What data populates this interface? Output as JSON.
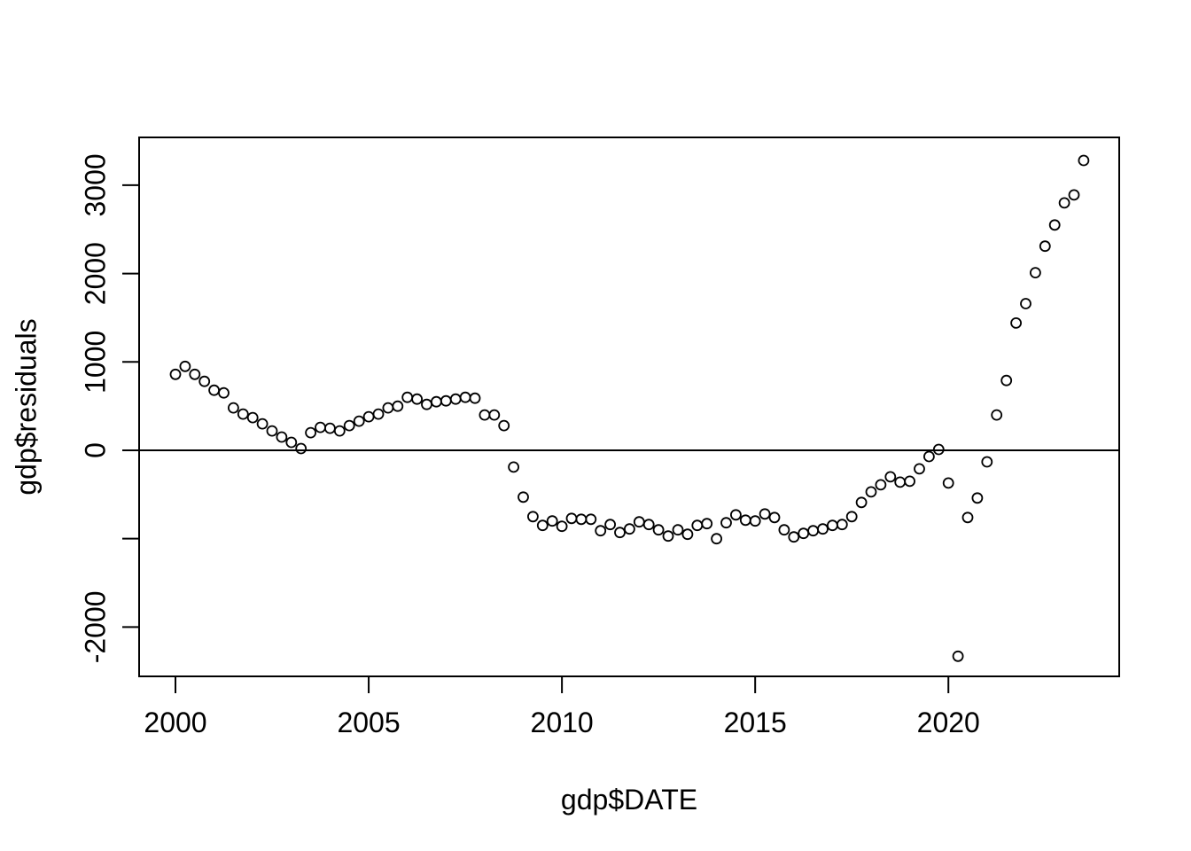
{
  "figure": {
    "background": "#ffffff",
    "foreground": "#000000"
  },
  "chart_data": {
    "type": "scatter",
    "title": "",
    "xlabel": "gdp$DATE",
    "ylabel": "gdp$residuals",
    "point_style": "open-circle",
    "point_color": "#000000",
    "grid": false,
    "legend": "none",
    "zero_line": true,
    "xlim": [
      1999.06,
      2024.42
    ],
    "ylim": [
      -2558,
      3541
    ],
    "x_ticks": {
      "values": [
        2000,
        2005,
        2010,
        2015,
        2020
      ],
      "labels": [
        "2000",
        "2005",
        "2010",
        "2015",
        "2020"
      ]
    },
    "y_ticks": {
      "values": [
        3000,
        2000,
        1000,
        0,
        -1000,
        -2000
      ],
      "labels": [
        "3000",
        "2000",
        "1000",
        "0",
        "",
        "-2000"
      ]
    },
    "x_unit": "year (quarterly)",
    "points": [
      [
        2000.0,
        860
      ],
      [
        2000.25,
        950
      ],
      [
        2000.5,
        860
      ],
      [
        2000.75,
        780
      ],
      [
        2001.0,
        680
      ],
      [
        2001.25,
        650
      ],
      [
        2001.5,
        480
      ],
      [
        2001.75,
        410
      ],
      [
        2002.0,
        370
      ],
      [
        2002.25,
        300
      ],
      [
        2002.5,
        220
      ],
      [
        2002.75,
        150
      ],
      [
        2003.0,
        90
      ],
      [
        2003.25,
        20
      ],
      [
        2003.5,
        200
      ],
      [
        2003.75,
        260
      ],
      [
        2004.0,
        250
      ],
      [
        2004.25,
        220
      ],
      [
        2004.5,
        280
      ],
      [
        2004.75,
        330
      ],
      [
        2005.0,
        380
      ],
      [
        2005.25,
        410
      ],
      [
        2005.5,
        480
      ],
      [
        2005.75,
        500
      ],
      [
        2006.0,
        600
      ],
      [
        2006.25,
        580
      ],
      [
        2006.5,
        520
      ],
      [
        2006.75,
        550
      ],
      [
        2007.0,
        560
      ],
      [
        2007.25,
        580
      ],
      [
        2007.5,
        600
      ],
      [
        2007.75,
        590
      ],
      [
        2008.0,
        400
      ],
      [
        2008.25,
        400
      ],
      [
        2008.5,
        280
      ],
      [
        2008.75,
        -190
      ],
      [
        2009.0,
        -530
      ],
      [
        2009.25,
        -750
      ],
      [
        2009.5,
        -850
      ],
      [
        2009.75,
        -800
      ],
      [
        2010.0,
        -860
      ],
      [
        2010.25,
        -770
      ],
      [
        2010.5,
        -780
      ],
      [
        2010.75,
        -780
      ],
      [
        2011.0,
        -910
      ],
      [
        2011.25,
        -840
      ],
      [
        2011.5,
        -930
      ],
      [
        2011.75,
        -890
      ],
      [
        2012.0,
        -810
      ],
      [
        2012.25,
        -840
      ],
      [
        2012.5,
        -900
      ],
      [
        2012.75,
        -970
      ],
      [
        2013.0,
        -900
      ],
      [
        2013.25,
        -950
      ],
      [
        2013.5,
        -850
      ],
      [
        2013.75,
        -830
      ],
      [
        2014.0,
        -1000
      ],
      [
        2014.25,
        -820
      ],
      [
        2014.5,
        -730
      ],
      [
        2014.75,
        -790
      ],
      [
        2015.0,
        -800
      ],
      [
        2015.25,
        -720
      ],
      [
        2015.5,
        -760
      ],
      [
        2015.75,
        -900
      ],
      [
        2016.0,
        -980
      ],
      [
        2016.25,
        -940
      ],
      [
        2016.5,
        -910
      ],
      [
        2016.75,
        -890
      ],
      [
        2017.0,
        -850
      ],
      [
        2017.25,
        -840
      ],
      [
        2017.5,
        -750
      ],
      [
        2017.75,
        -590
      ],
      [
        2018.0,
        -470
      ],
      [
        2018.25,
        -390
      ],
      [
        2018.5,
        -300
      ],
      [
        2018.75,
        -360
      ],
      [
        2019.0,
        -350
      ],
      [
        2019.25,
        -210
      ],
      [
        2019.5,
        -70
      ],
      [
        2019.75,
        10
      ],
      [
        2020.0,
        -370
      ],
      [
        2020.25,
        -2330
      ],
      [
        2020.5,
        -760
      ],
      [
        2020.75,
        -540
      ],
      [
        2021.0,
        -130
      ],
      [
        2021.25,
        400
      ],
      [
        2021.5,
        790
      ],
      [
        2021.75,
        1440
      ],
      [
        2022.0,
        1660
      ],
      [
        2022.25,
        2010
      ],
      [
        2022.5,
        2310
      ],
      [
        2022.75,
        2550
      ],
      [
        2023.0,
        2800
      ],
      [
        2023.25,
        2890
      ],
      [
        2023.5,
        3280
      ]
    ]
  }
}
